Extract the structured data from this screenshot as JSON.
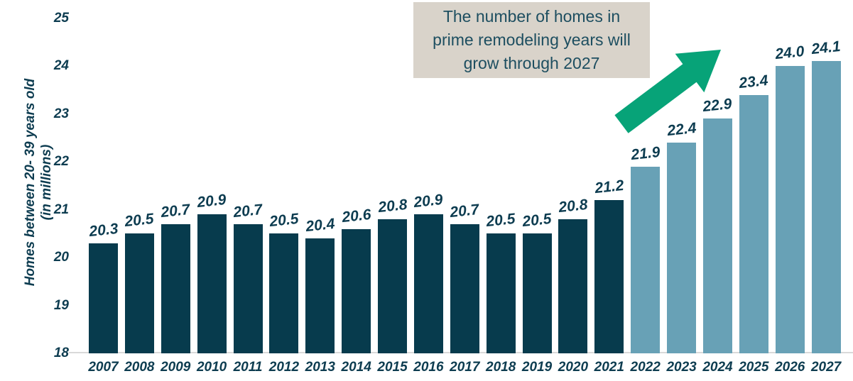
{
  "colors": {
    "bar_actual": "#073b4d",
    "bar_projected": "#68a1b6",
    "arrow_green": "#07a378",
    "annotation_bg": "#d9d3ca",
    "annotation_text": "#1d4e60",
    "label_text": "#0d3c50",
    "axis_line": "#d9d9d9"
  },
  "annotation": {
    "lines": [
      "The number of homes in",
      "prime remodeling years will",
      "grow through 2027"
    ]
  },
  "chart_data": {
    "type": "bar",
    "title": "",
    "ylabel": "Homes between 20- 39 years old (in millions)",
    "ylabel_line1": "Homes between 20- 39 years old",
    "ylabel_line2": "(in millions)",
    "ylim": [
      18,
      25
    ],
    "yticks": [
      "18",
      "19",
      "20",
      "21",
      "22",
      "23",
      "24",
      "25"
    ],
    "grid": false,
    "legend": "none",
    "categories": [
      "2007",
      "2008",
      "2009",
      "2010",
      "2011",
      "2012",
      "2013",
      "2014",
      "2015",
      "2016",
      "2017",
      "2018",
      "2019",
      "2020",
      "2021",
      "2022",
      "2023",
      "2024",
      "2025",
      "2026",
      "2027"
    ],
    "values": [
      20.3,
      20.5,
      20.7,
      20.9,
      20.7,
      20.5,
      20.4,
      20.6,
      20.8,
      20.9,
      20.7,
      20.5,
      20.5,
      20.8,
      21.2,
      21.9,
      22.4,
      22.9,
      23.4,
      24.0,
      24.1
    ],
    "value_labels": [
      "20.3",
      "20.5",
      "20.7",
      "20.9",
      "20.7",
      "20.5",
      "20.4",
      "20.6",
      "20.8",
      "20.9",
      "20.7",
      "20.5",
      "20.5",
      "20.8",
      "21.2",
      "21.9",
      "22.4",
      "22.9",
      "23.4",
      "24.0",
      "24.1"
    ],
    "projected_categories": [
      "2022",
      "2023",
      "2024",
      "2025",
      "2026",
      "2027"
    ],
    "actual_categories_color_note": "dark teal bars 2007-2021, light blue bars 2022-2027"
  }
}
